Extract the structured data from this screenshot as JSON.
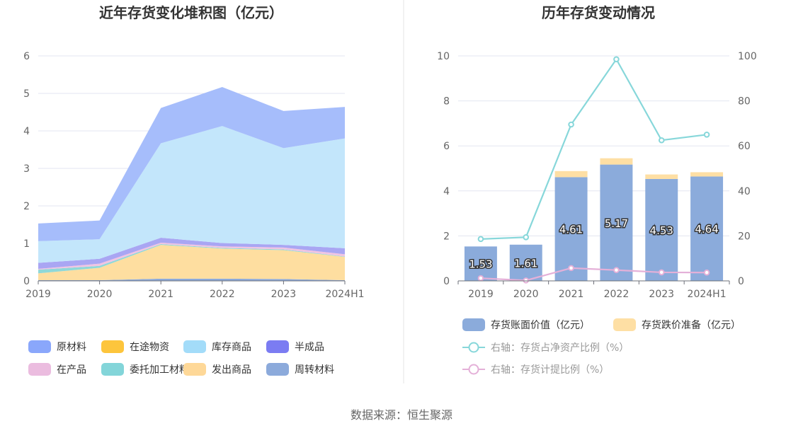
{
  "source": "数据来源：恒生聚源",
  "chart_data": [
    {
      "type": "area",
      "stacked": true,
      "title": "近年存货变化堆积图（亿元）",
      "categories": [
        "2019",
        "2020",
        "2021",
        "2022",
        "2023",
        "2024H1"
      ],
      "ylim": [
        0,
        6
      ],
      "yticks": [
        "0",
        "1",
        "2",
        "3",
        "4",
        "5",
        "6"
      ],
      "grid": true,
      "legend_position": "bottom",
      "series": [
        {
          "name": "周转材料",
          "color": "#8caadb",
          "values": [
            0.02,
            0.02,
            0.06,
            0.06,
            0.05,
            0.02
          ]
        },
        {
          "name": "发出商品",
          "color": "#fedea0",
          "values": [
            0.18,
            0.33,
            0.9,
            0.8,
            0.77,
            0.62
          ]
        },
        {
          "name": "委托加工材料",
          "color": "#8fd8d8",
          "values": [
            0.1,
            0.05,
            0.02,
            0.02,
            0.02,
            0.01
          ]
        },
        {
          "name": "在产品",
          "color": "#f0c4e2",
          "values": [
            0.02,
            0.06,
            0.04,
            0.04,
            0.05,
            0.06
          ]
        },
        {
          "name": "半成品",
          "color": "#a9a6f3",
          "values": [
            0.16,
            0.13,
            0.13,
            0.09,
            0.07,
            0.16
          ]
        },
        {
          "name": "在途物资",
          "color": "#fdd36a",
          "values": [
            0,
            0,
            0,
            0,
            0,
            0
          ]
        },
        {
          "name": "库存商品",
          "color": "#c3e6fb",
          "values": [
            0.58,
            0.52,
            2.52,
            3.12,
            2.58,
            2.93
          ]
        },
        {
          "name": "原材料",
          "color": "#a6bdfb",
          "values": [
            0.47,
            0.5,
            0.94,
            1.04,
            0.99,
            0.84
          ]
        }
      ],
      "legend": [
        {
          "name": "原材料",
          "color": "#8aa7fb"
        },
        {
          "name": "在途物资",
          "color": "#fdc53c"
        },
        {
          "name": "库存商品",
          "color": "#a3dcf9"
        },
        {
          "name": "半成品",
          "color": "#7b7cf2"
        },
        {
          "name": "在产品",
          "color": "#ebbcdf"
        },
        {
          "name": "委托加工材料",
          "color": "#83d5d9"
        },
        {
          "name": "发出商品",
          "color": "#fed898"
        },
        {
          "name": "周转材料",
          "color": "#8caadb"
        }
      ]
    },
    {
      "type": "bar+line",
      "title": "历年存货变动情况",
      "categories": [
        "2019",
        "2020",
        "2021",
        "2022",
        "2023",
        "2024H1"
      ],
      "ylim_left": [
        0,
        10
      ],
      "yticks_left": [
        "0",
        "2",
        "4",
        "6",
        "8",
        "10"
      ],
      "ylim_right": [
        0,
        100
      ],
      "yticks_right": [
        "0",
        "20",
        "40",
        "60",
        "80",
        "100"
      ],
      "grid": true,
      "legend_position": "bottom",
      "series": [
        {
          "name": "存货账面价值（亿元）",
          "kind": "bar",
          "stack": "a",
          "color": "#8babdb",
          "values": [
            1.53,
            1.61,
            4.61,
            5.17,
            4.53,
            4.64
          ],
          "labels": [
            "1.53",
            "1.61",
            "4.61",
            "5.17",
            "4.53",
            "4.64"
          ]
        },
        {
          "name": "存货跌价准备（亿元）",
          "kind": "bar",
          "stack": "a",
          "color": "#fedfa4",
          "values": [
            0.0,
            0.0,
            0.27,
            0.28,
            0.2,
            0.19
          ]
        },
        {
          "name": "右轴：存货占净资产比例（%）",
          "kind": "line",
          "axis": "right",
          "color": "#87d7da",
          "values": [
            18.6,
            19.4,
            69.5,
            98.5,
            62.5,
            65.0
          ]
        },
        {
          "name": "右轴：存货计提比例（%）",
          "kind": "line",
          "axis": "right",
          "color": "#e4b0d8",
          "values": [
            1.2,
            0.2,
            5.7,
            4.8,
            3.8,
            3.7
          ]
        }
      ]
    }
  ]
}
